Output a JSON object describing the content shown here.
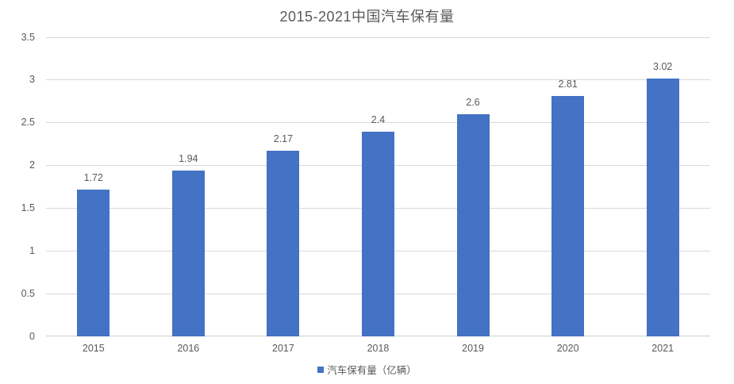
{
  "title": "2015-2021中国汽车保有量",
  "chart_data": {
    "type": "bar",
    "title": "2015-2021中国汽车保有量",
    "categories": [
      "2015",
      "2016",
      "2017",
      "2018",
      "2019",
      "2020",
      "2021"
    ],
    "values": [
      1.72,
      1.94,
      2.17,
      2.4,
      2.6,
      2.81,
      3.02
    ],
    "data_labels": [
      "1.72",
      "1.94",
      "2.17",
      "2.4",
      "2.6",
      "2.81",
      "3.02"
    ],
    "xlabel": "",
    "ylabel": "",
    "ylim": [
      0,
      3.5
    ],
    "yticks": [
      0,
      0.5,
      1,
      1.5,
      2,
      2.5,
      3,
      3.5
    ],
    "ytick_labels": [
      "0",
      "0.5",
      "1",
      "1.5",
      "2",
      "2.5",
      "3",
      "3.5"
    ],
    "grid": "horizontal",
    "legend": {
      "position": "bottom",
      "entries": [
        {
          "label": "汽车保有量（亿辆）",
          "color": "#4472C4",
          "marker": "square-icon"
        }
      ]
    }
  },
  "colors": {
    "bar": "#4472C4",
    "text": "#595959",
    "gridline": "#D9D9D9",
    "axis_line": "#D0D0D0",
    "background": "#FFFFFF"
  }
}
